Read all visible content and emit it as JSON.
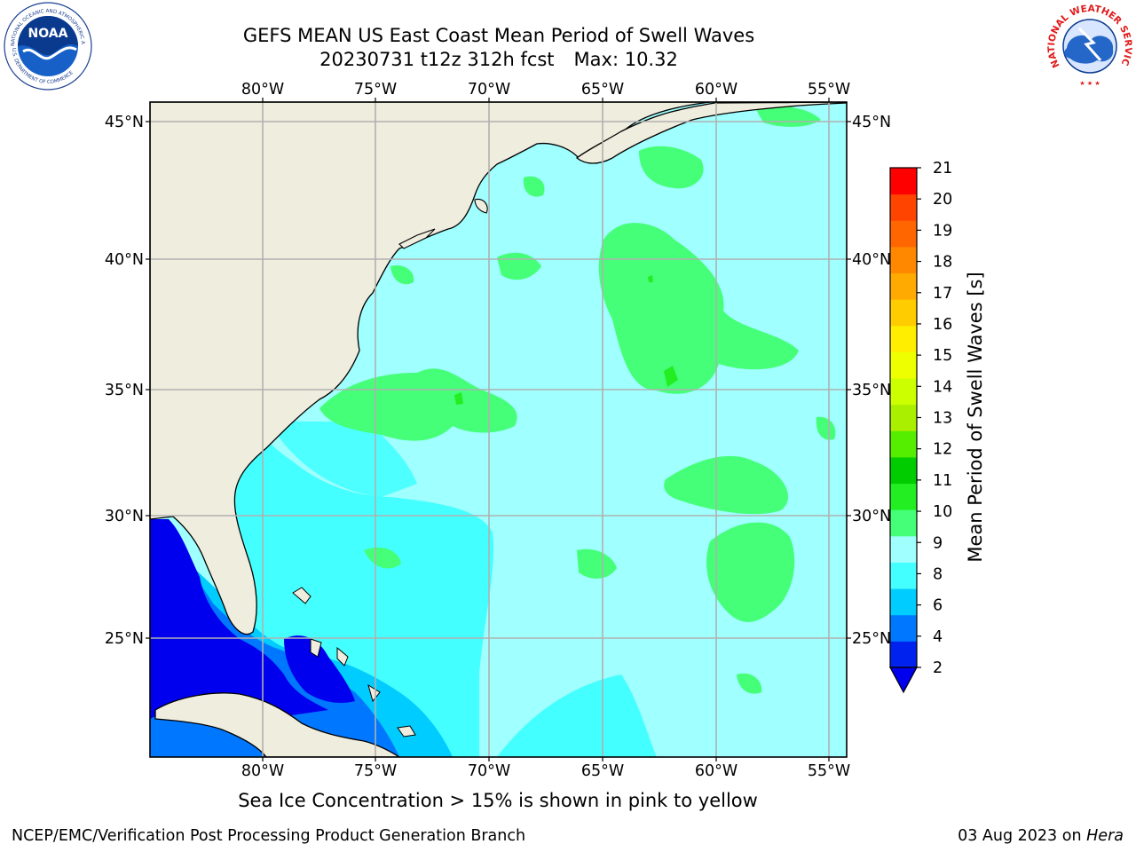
{
  "header": {
    "title_line1": "GEFS MEAN US East Coast Mean Period of Swell Waves",
    "title_line2_left": "20230731 t12z 312h fcst",
    "title_line2_right": "Max: 10.32"
  },
  "map": {
    "lon_ticks": [
      "80°W",
      "75°W",
      "70°W",
      "65°W",
      "60°W",
      "55°W"
    ],
    "lat_ticks": [
      "45°N",
      "40°N",
      "35°N",
      "30°N",
      "25°N"
    ],
    "land_color": "#efedde",
    "grid_color": "#b0b0b0"
  },
  "colorbar": {
    "label": "Mean Period of Swell Waves [s]",
    "tick_labels": [
      "2",
      "4",
      "6",
      "8",
      "9",
      "10",
      "11",
      "12",
      "13",
      "14",
      "15",
      "16",
      "17",
      "18",
      "19",
      "20",
      "21"
    ],
    "colors": [
      "#0022ee",
      "#0077ff",
      "#00ccff",
      "#44ffff",
      "#a0ffff",
      "#44ff77",
      "#22ee22",
      "#00cc00",
      "#55ee00",
      "#aaee00",
      "#ccff00",
      "#eeff00",
      "#ffee00",
      "#ffcc00",
      "#ffaa00",
      "#ff8800",
      "#ff6600",
      "#ff4400",
      "#ff0000"
    ],
    "under_color": "#0000ee"
  },
  "footer": {
    "note": "Sea Ice Concentration > 15% is shown in pink to yellow",
    "credit_left": "NCEP/EMC/Verification Post Processing Product Generation Branch",
    "date": "03 Aug 2023 on",
    "host": "Hera"
  },
  "logos": {
    "noaa_text": "NOAA",
    "noaa_ring_top": "NATIONAL OCEANIC AND ATMOSPHERIC ADMINISTRATION",
    "noaa_ring_bottom": "U.S. DEPARTMENT OF COMMERCE",
    "nws_ring": "NATIONAL WEATHER SERVICE"
  }
}
